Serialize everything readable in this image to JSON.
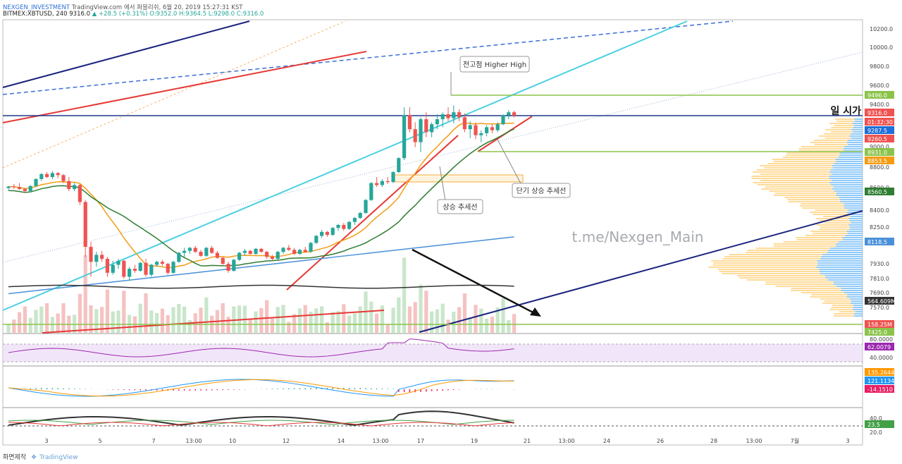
{
  "header": {
    "author": "NEXGEN_INVESTMENT",
    "published_on": "TradingView.com 에서 퍼블리쉬, 6월 20, 2019 15:27:31 KST",
    "symbol_line": "BITMEX:XBTUSD, 240",
    "last": "9316.0",
    "change": "+28.5 (+0.31%)",
    "ohlc": "O:9352.0 H:9364.5 L:9298.0 C:9316.0"
  },
  "footer": {
    "made_with": "화면제작",
    "brand": "TradingView"
  },
  "watermark": "t.me/Nexgen_Main",
  "colors": {
    "up": "#26a69a",
    "down": "#ef5350",
    "ma_orange": "#f39c12",
    "ma_green": "#2e7d32",
    "ma_blue": "#4a90d9",
    "trend_red": "#e53935",
    "trend_blue": "#1a237e",
    "cyan": "#4dd0e1",
    "level_green": "#8bc34a",
    "pivot_blue": "#1e3a8a"
  },
  "chart_data": [
    {
      "type": "candlestick",
      "pane": "price",
      "symbol": "BITMEX:XBTUSD",
      "timeframe": "240",
      "y_ticks": [
        "10200.0",
        "10000.0",
        "9800.0",
        "9600.0",
        "9400.0",
        "9000.0",
        "8800.0",
        "8600.0",
        "8400.0",
        "8250.0",
        "7930.0",
        "7810.0",
        "7690.0",
        "7570.0"
      ],
      "x_ticks": [
        "3",
        "5",
        "7",
        "13:00",
        "10",
        "12",
        "14",
        "13:00",
        "17",
        "19",
        "21",
        "13:00",
        "24",
        "26",
        "28",
        "13:00",
        "7월",
        "3"
      ],
      "ylim": [
        7400,
        10350
      ],
      "price_tags": [
        {
          "value": "9496.0",
          "color": "#8bc34a"
        },
        {
          "value": "9316.0",
          "color": "#ef5350"
        },
        {
          "value": "01:32:30",
          "color": "#ef5350"
        },
        {
          "value": "9287.5",
          "color": "#1e6fd8"
        },
        {
          "value": "9260.5",
          "color": "#ef5350"
        },
        {
          "value": "8931.0",
          "color": "#8bc34a"
        },
        {
          "value": "8853.5",
          "color": "#f39c12"
        },
        {
          "value": "8560.5",
          "color": "#2e7d32"
        },
        {
          "value": "8118.5",
          "color": "#4a90d9"
        },
        {
          "value": "564.609M",
          "color": "#333333"
        },
        {
          "value": "158.25M",
          "color": "#ef5350"
        },
        {
          "value": "7425.0",
          "color": "#8bc34a"
        }
      ],
      "horizontal_levels": [
        {
          "price": 9496,
          "color": "#8bc34a"
        },
        {
          "price": 8931,
          "color": "#8bc34a"
        },
        {
          "price": 7425,
          "color": "#8bc34a"
        },
        {
          "price": 9316,
          "color": "#1e3a8a"
        }
      ],
      "annotations": [
        "전고점 Higher High",
        "상승 추세선",
        "단기 상승 추세선",
        "일 시가"
      ],
      "candles": [
        [
          8590,
          8610,
          8570,
          8605
        ],
        [
          8605,
          8630,
          8580,
          8600
        ],
        [
          8600,
          8640,
          8570,
          8580
        ],
        [
          8580,
          8590,
          8540,
          8560
        ],
        [
          8560,
          8620,
          8550,
          8610
        ],
        [
          8610,
          8690,
          8600,
          8680
        ],
        [
          8680,
          8740,
          8660,
          8730
        ],
        [
          8730,
          8750,
          8690,
          8700
        ],
        [
          8700,
          8760,
          8680,
          8740
        ],
        [
          8740,
          8750,
          8690,
          8720
        ],
        [
          8720,
          8730,
          8640,
          8660
        ],
        [
          8660,
          8700,
          8560,
          8580
        ],
        [
          8580,
          8640,
          8560,
          8620
        ],
        [
          8620,
          8630,
          8420,
          8450
        ],
        [
          8450,
          8470,
          7900,
          8000
        ],
        [
          8000,
          8050,
          7700,
          7850
        ],
        [
          7850,
          7950,
          7800,
          7920
        ],
        [
          7920,
          7960,
          7850,
          7880
        ],
        [
          7880,
          7900,
          7700,
          7740
        ],
        [
          7740,
          7860,
          7720,
          7820
        ],
        [
          7820,
          7880,
          7780,
          7860
        ],
        [
          7860,
          7870,
          7680,
          7700
        ],
        [
          7700,
          7800,
          7660,
          7780
        ],
        [
          7780,
          7820,
          7740,
          7760
        ],
        [
          7760,
          7850,
          7750,
          7840
        ],
        [
          7840,
          7880,
          7700,
          7720
        ],
        [
          7720,
          7830,
          7700,
          7820
        ],
        [
          7820,
          7860,
          7800,
          7850
        ],
        [
          7850,
          7870,
          7810,
          7830
        ],
        [
          7830,
          7840,
          7720,
          7740
        ],
        [
          7740,
          7860,
          7730,
          7850
        ],
        [
          7850,
          7950,
          7840,
          7940
        ],
        [
          7940,
          7990,
          7900,
          7960
        ],
        [
          7960,
          8000,
          7930,
          7990
        ],
        [
          7990,
          8010,
          7940,
          7950
        ],
        [
          7950,
          7970,
          7900,
          7910
        ],
        [
          7910,
          8000,
          7900,
          7990
        ],
        [
          7990,
          8010,
          7930,
          7940
        ],
        [
          7940,
          7960,
          7880,
          7890
        ],
        [
          7890,
          7900,
          7820,
          7830
        ],
        [
          7830,
          7850,
          7740,
          7760
        ],
        [
          7760,
          7880,
          7750,
          7870
        ],
        [
          7870,
          7950,
          7860,
          7940
        ],
        [
          7940,
          7980,
          7910,
          7960
        ],
        [
          7960,
          7970,
          7920,
          7930
        ],
        [
          7930,
          7990,
          7920,
          7980
        ],
        [
          7980,
          7990,
          7940,
          7950
        ],
        [
          7950,
          7960,
          7880,
          7900
        ],
        [
          7900,
          7920,
          7860,
          7880
        ],
        [
          7880,
          7960,
          7870,
          7950
        ],
        [
          7950,
          8000,
          7930,
          7990
        ],
        [
          7990,
          8020,
          7960,
          7970
        ],
        [
          7970,
          7990,
          7920,
          7930
        ],
        [
          7930,
          7980,
          7920,
          7970
        ],
        [
          7970,
          8000,
          7940,
          7950
        ],
        [
          7950,
          8050,
          7940,
          8040
        ],
        [
          8040,
          8120,
          8030,
          8110
        ],
        [
          8110,
          8170,
          8090,
          8150
        ],
        [
          8150,
          8160,
          8100,
          8120
        ],
        [
          8120,
          8200,
          8110,
          8190
        ],
        [
          8190,
          8230,
          8160,
          8220
        ],
        [
          8220,
          8240,
          8160,
          8180
        ],
        [
          8180,
          8260,
          8170,
          8250
        ],
        [
          8250,
          8300,
          8220,
          8290
        ],
        [
          8290,
          8350,
          8280,
          8340
        ],
        [
          8340,
          8480,
          8330,
          8470
        ],
        [
          8470,
          8650,
          8460,
          8640
        ],
        [
          8640,
          8700,
          8600,
          8620
        ],
        [
          8620,
          8680,
          8600,
          8660
        ],
        [
          8660,
          8700,
          8630,
          8650
        ],
        [
          8650,
          8760,
          8640,
          8750
        ],
        [
          8750,
          8900,
          8740,
          8890
        ],
        [
          8890,
          9400,
          8870,
          9320
        ],
        [
          9320,
          9400,
          9150,
          9180
        ],
        [
          9180,
          9250,
          9000,
          9050
        ],
        [
          9050,
          9300,
          8950,
          9280
        ],
        [
          9280,
          9350,
          9100,
          9150
        ],
        [
          9150,
          9250,
          9100,
          9230
        ],
        [
          9230,
          9330,
          9180,
          9280
        ],
        [
          9280,
          9350,
          9200,
          9330
        ],
        [
          9330,
          9400,
          9260,
          9290
        ],
        [
          9290,
          9420,
          9240,
          9350
        ],
        [
          9350,
          9380,
          9260,
          9300
        ],
        [
          9300,
          9340,
          9150,
          9180
        ],
        [
          9180,
          9260,
          9090,
          9220
        ],
        [
          9220,
          9250,
          9080,
          9120
        ],
        [
          9120,
          9170,
          9050,
          9140
        ],
        [
          9140,
          9220,
          9110,
          9200
        ],
        [
          9200,
          9230,
          9140,
          9170
        ],
        [
          9170,
          9250,
          9150,
          9230
        ],
        [
          9230,
          9330,
          9220,
          9320
        ],
        [
          9320,
          9370,
          9280,
          9350
        ],
        [
          9350,
          9365,
          9298,
          9316
        ]
      ]
    },
    {
      "type": "line",
      "pane": "rsi",
      "y_ticks": [
        "80.0000",
        "40.0000"
      ],
      "last_value": "62.0079"
    },
    {
      "type": "histogram",
      "pane": "macd",
      "values": [
        "135.2644",
        "121.1134",
        "-14.1510"
      ]
    },
    {
      "type": "line",
      "pane": "dmi",
      "y_ticks": [
        "40.0",
        "20.0"
      ],
      "last_value": "23.5"
    }
  ]
}
